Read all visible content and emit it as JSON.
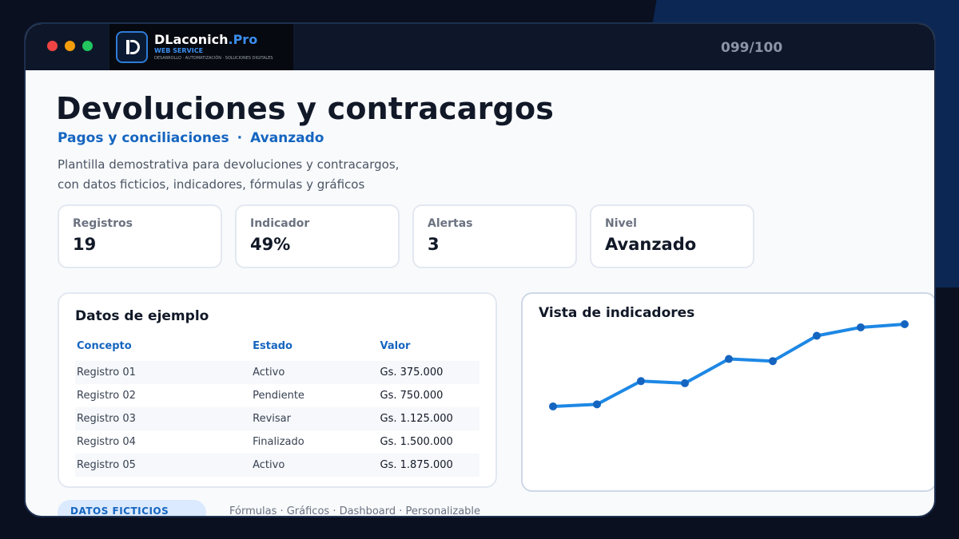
{
  "window": {
    "counter": "099/100",
    "brand": {
      "name": "DLaconich",
      "suffix": ".Pro",
      "sub": "WEB SERVICE",
      "tag": "DESARROLLO · AUTOMATIZACIÓN · SOLUCIONES DIGITALES"
    }
  },
  "header": {
    "title": "Devoluciones y contracargos",
    "category": "Pagos y conciliaciones",
    "separator": "·",
    "level": "Avanzado",
    "description_line1": "Plantilla demostrativa para devoluciones y contracargos,",
    "description_line2": "con datos ficticios, indicadores, fórmulas y gráficos"
  },
  "kpis": [
    {
      "label": "Registros",
      "value": "19"
    },
    {
      "label": "Indicador",
      "value": "49%"
    },
    {
      "label": "Alertas",
      "value": "3"
    },
    {
      "label": "Nivel",
      "value": "Avanzado"
    }
  ],
  "table": {
    "title": "Datos de ejemplo",
    "columns": [
      "Concepto",
      "Estado",
      "Valor"
    ],
    "rows": [
      [
        "Registro 01",
        "Activo",
        "Gs. 375.000"
      ],
      [
        "Registro 02",
        "Pendiente",
        "Gs. 750.000"
      ],
      [
        "Registro 03",
        "Revisar",
        "Gs. 1.125.000"
      ],
      [
        "Registro 04",
        "Finalizado",
        "Gs. 1.500.000"
      ],
      [
        "Registro 05",
        "Activo",
        "Gs. 1.875.000"
      ]
    ]
  },
  "chart_data": {
    "type": "line",
    "title": "Vista de indicadores",
    "x": [
      1,
      2,
      3,
      4,
      5,
      6,
      7,
      8,
      9
    ],
    "series": [
      {
        "values": [
          22,
          24,
          46,
          44,
          67,
          65,
          89,
          97,
          100
        ]
      }
    ],
    "ylim": [
      0,
      100
    ],
    "grid": false,
    "color": "#1e88e5",
    "marker_color": "#1565c0"
  },
  "footer": {
    "badge": "DATOS FICTICIOS",
    "note": "Fórmulas · Gráficos · Dashboard · Personalizable"
  }
}
